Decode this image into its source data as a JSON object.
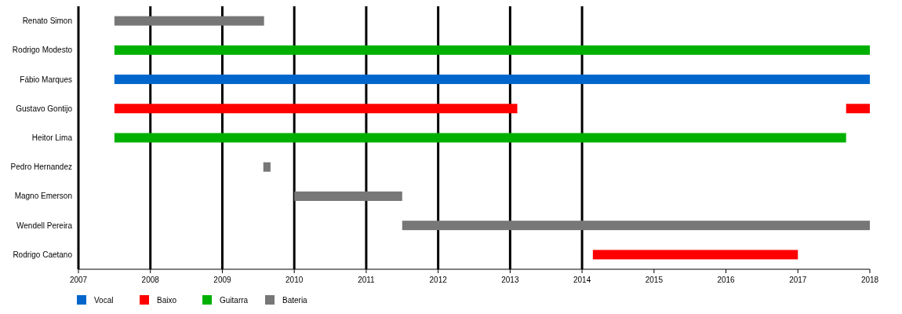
{
  "chart_data": {
    "type": "bar",
    "orientation": "horizontal",
    "categories": [
      "Renato Simon",
      "Rodrigo Modesto",
      "Fábio Marques",
      "Gustavo Gontijo",
      "Heitor Lima",
      "Pedro Hernandez",
      "Magno Emerson",
      "Wendell Pereira",
      "Rodrigo Caetano"
    ],
    "series": [
      {
        "name": "Vocal",
        "color": "#0066cc",
        "base": [
          null,
          null,
          2007.5,
          null,
          null,
          null,
          null,
          null,
          null
        ],
        "values": [
          null,
          null,
          10.5,
          null,
          null,
          null,
          null,
          null,
          null
        ]
      },
      {
        "name": "Baixo",
        "color": "#ff0000",
        "base": [
          null,
          null,
          null,
          2007.5,
          null,
          null,
          null,
          null,
          2014.15
        ],
        "values": [
          null,
          null,
          null,
          5.6,
          null,
          null,
          null,
          null,
          2.85
        ]
      },
      {
        "name": "Guitarra",
        "color": "#00b000",
        "base": [
          null,
          2007.5,
          null,
          null,
          2007.5,
          null,
          null,
          null,
          null
        ],
        "values": [
          null,
          10.5,
          null,
          null,
          10.17,
          null,
          null,
          null,
          null
        ]
      },
      {
        "name": "Bateria",
        "color": "#777777",
        "base": [
          2007.5,
          null,
          null,
          null,
          null,
          2009.57,
          2010,
          2011.5,
          null
        ],
        "values": [
          2.08,
          null,
          null,
          null,
          null,
          0.1,
          1.5,
          6.5,
          null
        ]
      },
      {
        "color": "#ff0000",
        "base": [
          null,
          null,
          null,
          2017.67,
          null,
          null,
          null,
          null,
          null
        ],
        "values": [
          null,
          null,
          null,
          0.33,
          null,
          null,
          null,
          null,
          null
        ]
      }
    ],
    "xlim": [
      2007,
      2018
    ],
    "xticks": [
      2007,
      2008,
      2009,
      2010,
      2011,
      2012,
      2013,
      2014,
      2015,
      2016,
      2017,
      2018
    ],
    "ref_lines": [
      {
        "axis": "x",
        "value": 2008,
        "color": "#000000"
      },
      {
        "axis": "x",
        "value": 2009,
        "color": "#000000"
      },
      {
        "axis": "x",
        "value": 2010,
        "color": "#000000"
      },
      {
        "axis": "x",
        "value": 2011,
        "color": "#000000"
      },
      {
        "axis": "x",
        "value": 2012,
        "color": "#000000"
      },
      {
        "axis": "x",
        "value": 2013,
        "color": "#000000"
      },
      {
        "axis": "x",
        "value": 2014,
        "color": "#000000"
      }
    ],
    "legend": "bottom left"
  }
}
